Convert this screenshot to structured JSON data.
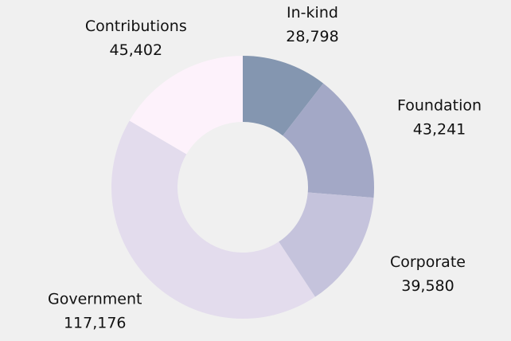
{
  "chart_data": {
    "type": "donut",
    "categories": [
      "In-kind",
      "Foundation",
      "Corporate",
      "Government",
      "Contributions"
    ],
    "values": [
      28798,
      43241,
      39580,
      117176,
      45402
    ],
    "value_labels": [
      "28,798",
      "43,241",
      "39,580",
      "117,176",
      "45,402"
    ],
    "colors": [
      "#8496b0",
      "#a3a8c6",
      "#c5c3dc",
      "#e3dced",
      "#fdf2fb"
    ]
  }
}
